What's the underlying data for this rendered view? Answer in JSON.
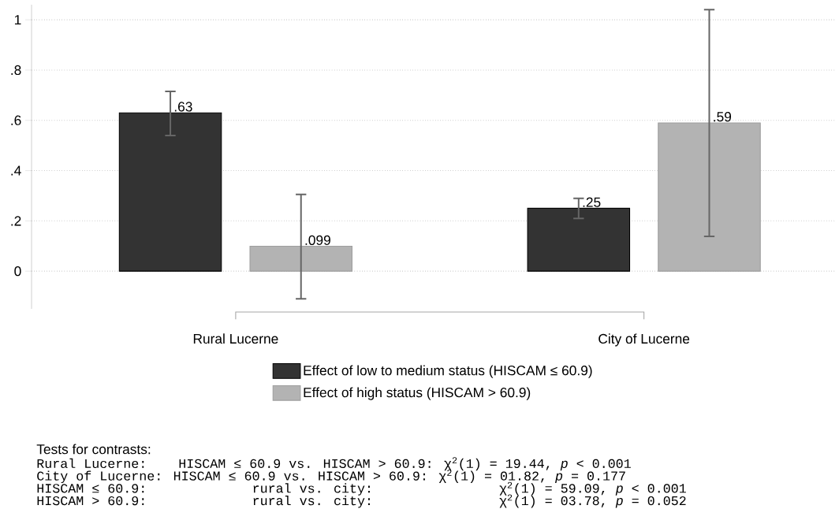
{
  "chart_data": {
    "type": "bar",
    "categories": [
      "Rural Lucerne",
      "City of Lucerne"
    ],
    "series": [
      {
        "name": "Effect of low to medium status (HISCAM ≤ 60.9)",
        "color": "#333333",
        "values": [
          0.63,
          0.25
        ],
        "errors": [
          [
            0.54,
            0.715
          ],
          [
            0.21,
            0.29
          ]
        ],
        "value_labels": [
          ".63",
          ".25"
        ]
      },
      {
        "name": "Effect of high status (HISCAM > 60.9)",
        "color": "#b3b3b3",
        "values": [
          0.099,
          0.59
        ],
        "errors": [
          [
            -0.11,
            0.305
          ],
          [
            0.138,
            1.04
          ]
        ],
        "value_labels": [
          ".099",
          ".59"
        ]
      }
    ],
    "ylim": [
      -0.15,
      1.06
    ],
    "yticks": [
      0,
      {
        "value": 0.2,
        "label": ".2"
      },
      {
        "value": 0.4,
        "label": ".4"
      },
      {
        "value": 0.6,
        "label": ".6"
      },
      {
        "value": 0.8,
        "label": ".8"
      },
      1
    ],
    "grid": "y",
    "legend": "bottom",
    "annotations": [
      "Tests for contrasts:",
      "Rural Lucerne:   HISCAM ≤ 60.9 vs. HISCAM > 60.9: χ$^{2}$(1) = 19.44, *p* < 0.001",
      "City of Lucerne: HISCAM ≤ 60.9 vs. HISCAM > 60.9: χ$^{2}$(1) = 01.82, *p* = 0.177",
      "HISCAM ≤ 60.9:          rural vs. city:            χ$^{2}$(1) = 59.09, *p* < 0.001",
      "HISCAM > 60.9:          rural vs. city:            χ$^{2}$(1) = 03.78, *p* = 0.052"
    ]
  }
}
